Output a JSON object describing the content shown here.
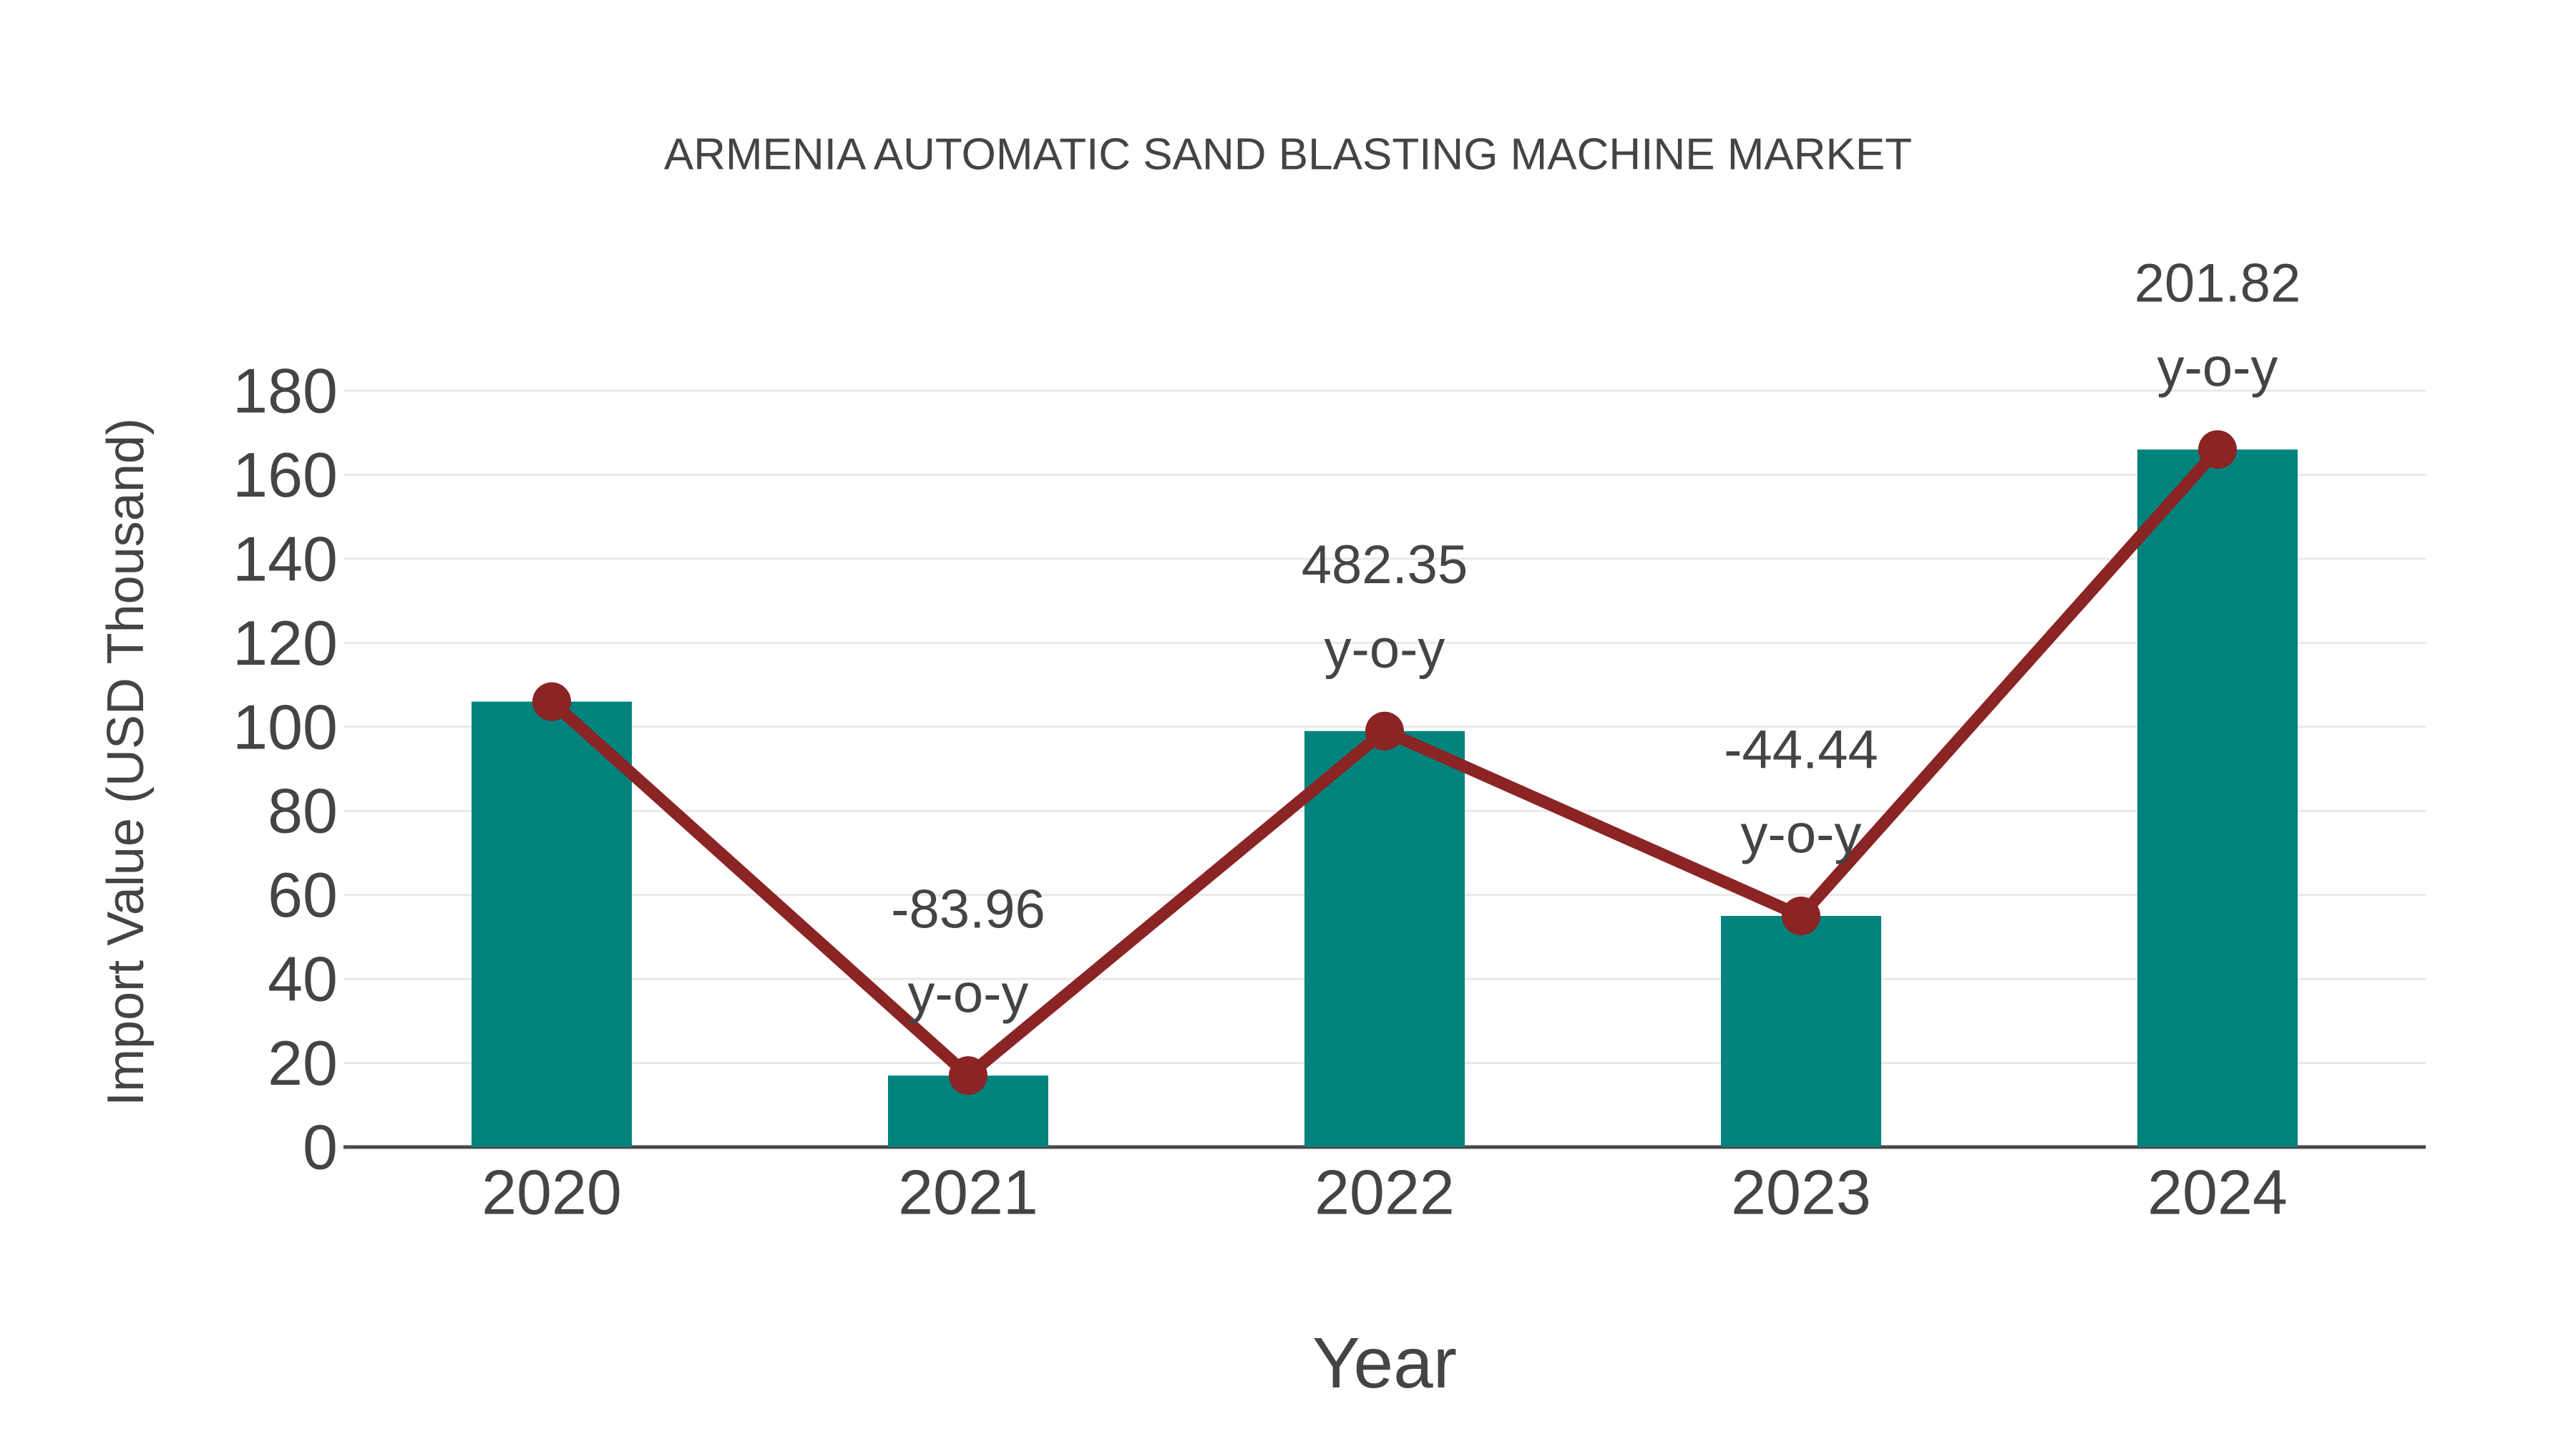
{
  "colors": {
    "bar": "#00827D",
    "line": "#8B2424",
    "marker": "#8B2424",
    "text": "#444444",
    "grid": "#e9e9e9",
    "axis": "#4a4a4a",
    "background": "#ffffff"
  },
  "chart_data": {
    "type": "bar",
    "title": "ARMENIA AUTOMATIC SAND BLASTING MACHINE MARKET",
    "xlabel": "Year",
    "ylabel": "Import Value (USD Thousand)",
    "categories": [
      "2020",
      "2021",
      "2022",
      "2023",
      "2024"
    ],
    "series": [
      {
        "name": "Import Value (USD Thousand)",
        "type": "bar",
        "values": [
          106,
          17,
          99,
          55,
          166
        ]
      },
      {
        "name": "y-o-y change (%)",
        "type": "line",
        "marker_values": [
          106,
          17,
          99,
          55,
          166
        ],
        "yoy_percent": [
          null,
          -83.96,
          482.35,
          -44.44,
          201.82
        ]
      }
    ],
    "annotations": [
      {
        "category": "2021",
        "value": "-83.96",
        "sub": "y-o-y"
      },
      {
        "category": "2022",
        "value": "482.35",
        "sub": "y-o-y"
      },
      {
        "category": "2023",
        "value": "-44.44",
        "sub": "y-o-y"
      },
      {
        "category": "2024",
        "value": "201.82",
        "sub": "y-o-y"
      }
    ],
    "yticks": [
      0,
      20,
      40,
      60,
      80,
      100,
      120,
      140,
      160,
      180
    ],
    "ylim": [
      0,
      180
    ],
    "grid": true,
    "legend": "none"
  }
}
